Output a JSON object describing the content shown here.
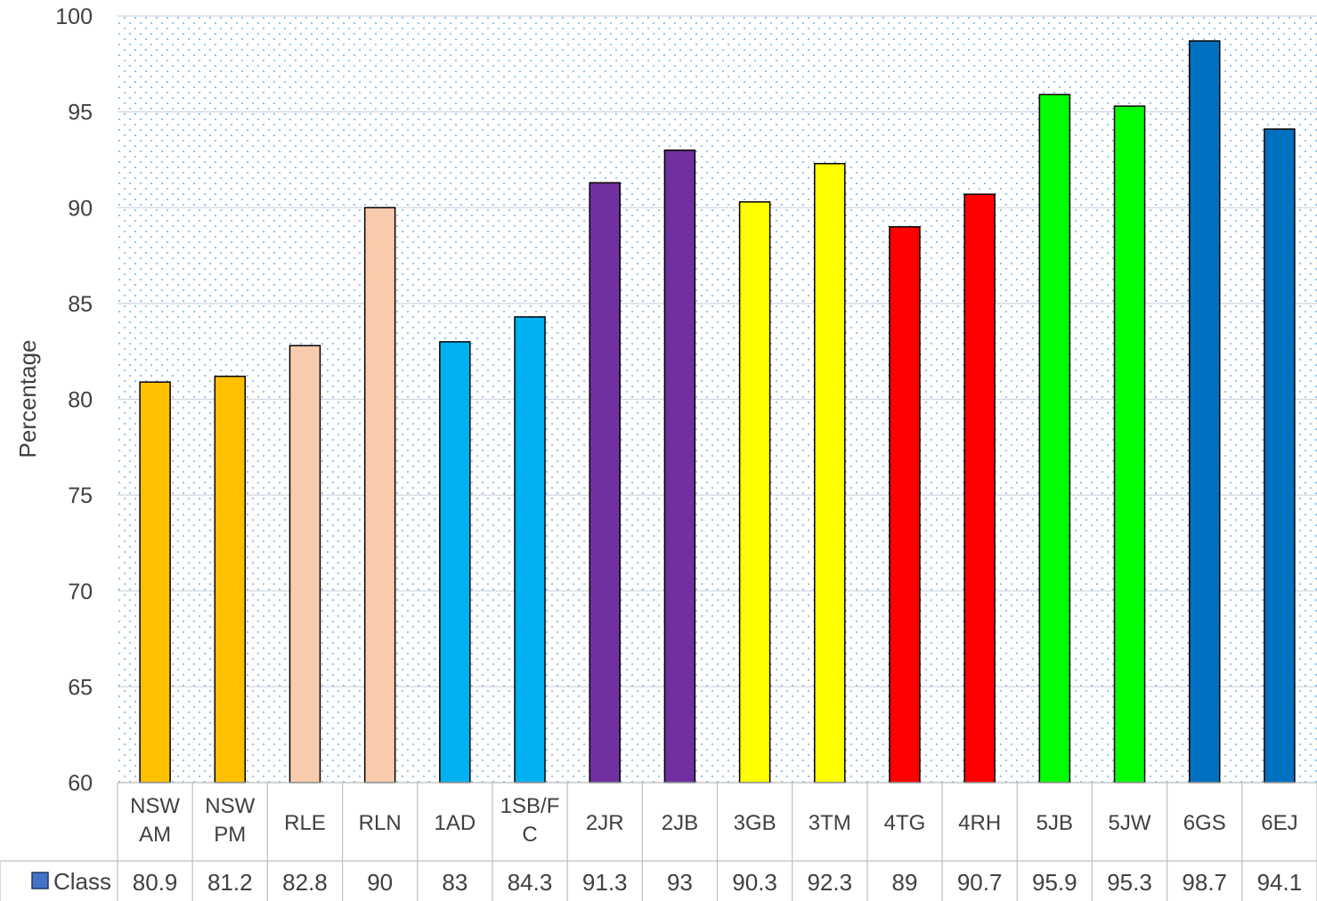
{
  "chart_data": {
    "type": "bar",
    "title": "",
    "xlabel": "",
    "ylabel": "Percentage",
    "ylim": [
      60,
      100
    ],
    "y_ticks": [
      "60",
      "65",
      "70",
      "75",
      "80",
      "85",
      "90",
      "95",
      "100"
    ],
    "grid": true,
    "plot_background": "dotted light-blue pattern",
    "data_table": true,
    "legend": "data-table row header",
    "categories": [
      [
        "NSW",
        "AM"
      ],
      [
        "NSW",
        "PM"
      ],
      [
        "RLE"
      ],
      [
        "RLN"
      ],
      [
        "1AD"
      ],
      [
        "1SB/F",
        "C"
      ],
      [
        "2JR"
      ],
      [
        "2JB"
      ],
      [
        "3GB"
      ],
      [
        "3TM"
      ],
      [
        "4TG"
      ],
      [
        "4RH"
      ],
      [
        "5JB"
      ],
      [
        "5JW"
      ],
      [
        "6GS"
      ],
      [
        "6EJ"
      ]
    ],
    "series": [
      {
        "name": "Class",
        "legend_color": "#4472C4",
        "values": [
          80.9,
          81.2,
          82.8,
          90,
          83,
          84.3,
          91.3,
          93,
          90.3,
          92.3,
          89,
          90.7,
          95.9,
          95.3,
          98.7,
          94.1
        ],
        "value_labels": [
          "80.9",
          "81.2",
          "82.8",
          "90",
          "83",
          "84.3",
          "91.3",
          "93",
          "90.3",
          "92.3",
          "89",
          "90.7",
          "95.9",
          "95.3",
          "98.7",
          "94.1"
        ],
        "colors": [
          "#FFC000",
          "#FFC000",
          "#F8CBAD",
          "#F8CBAD",
          "#00B0F0",
          "#00B0F0",
          "#7030A0",
          "#7030A0",
          "#FFFF00",
          "#FFFF00",
          "#FF0000",
          "#FF0000",
          "#00FF00",
          "#00FF00",
          "#0070C0",
          "#0070C0"
        ]
      }
    ]
  }
}
